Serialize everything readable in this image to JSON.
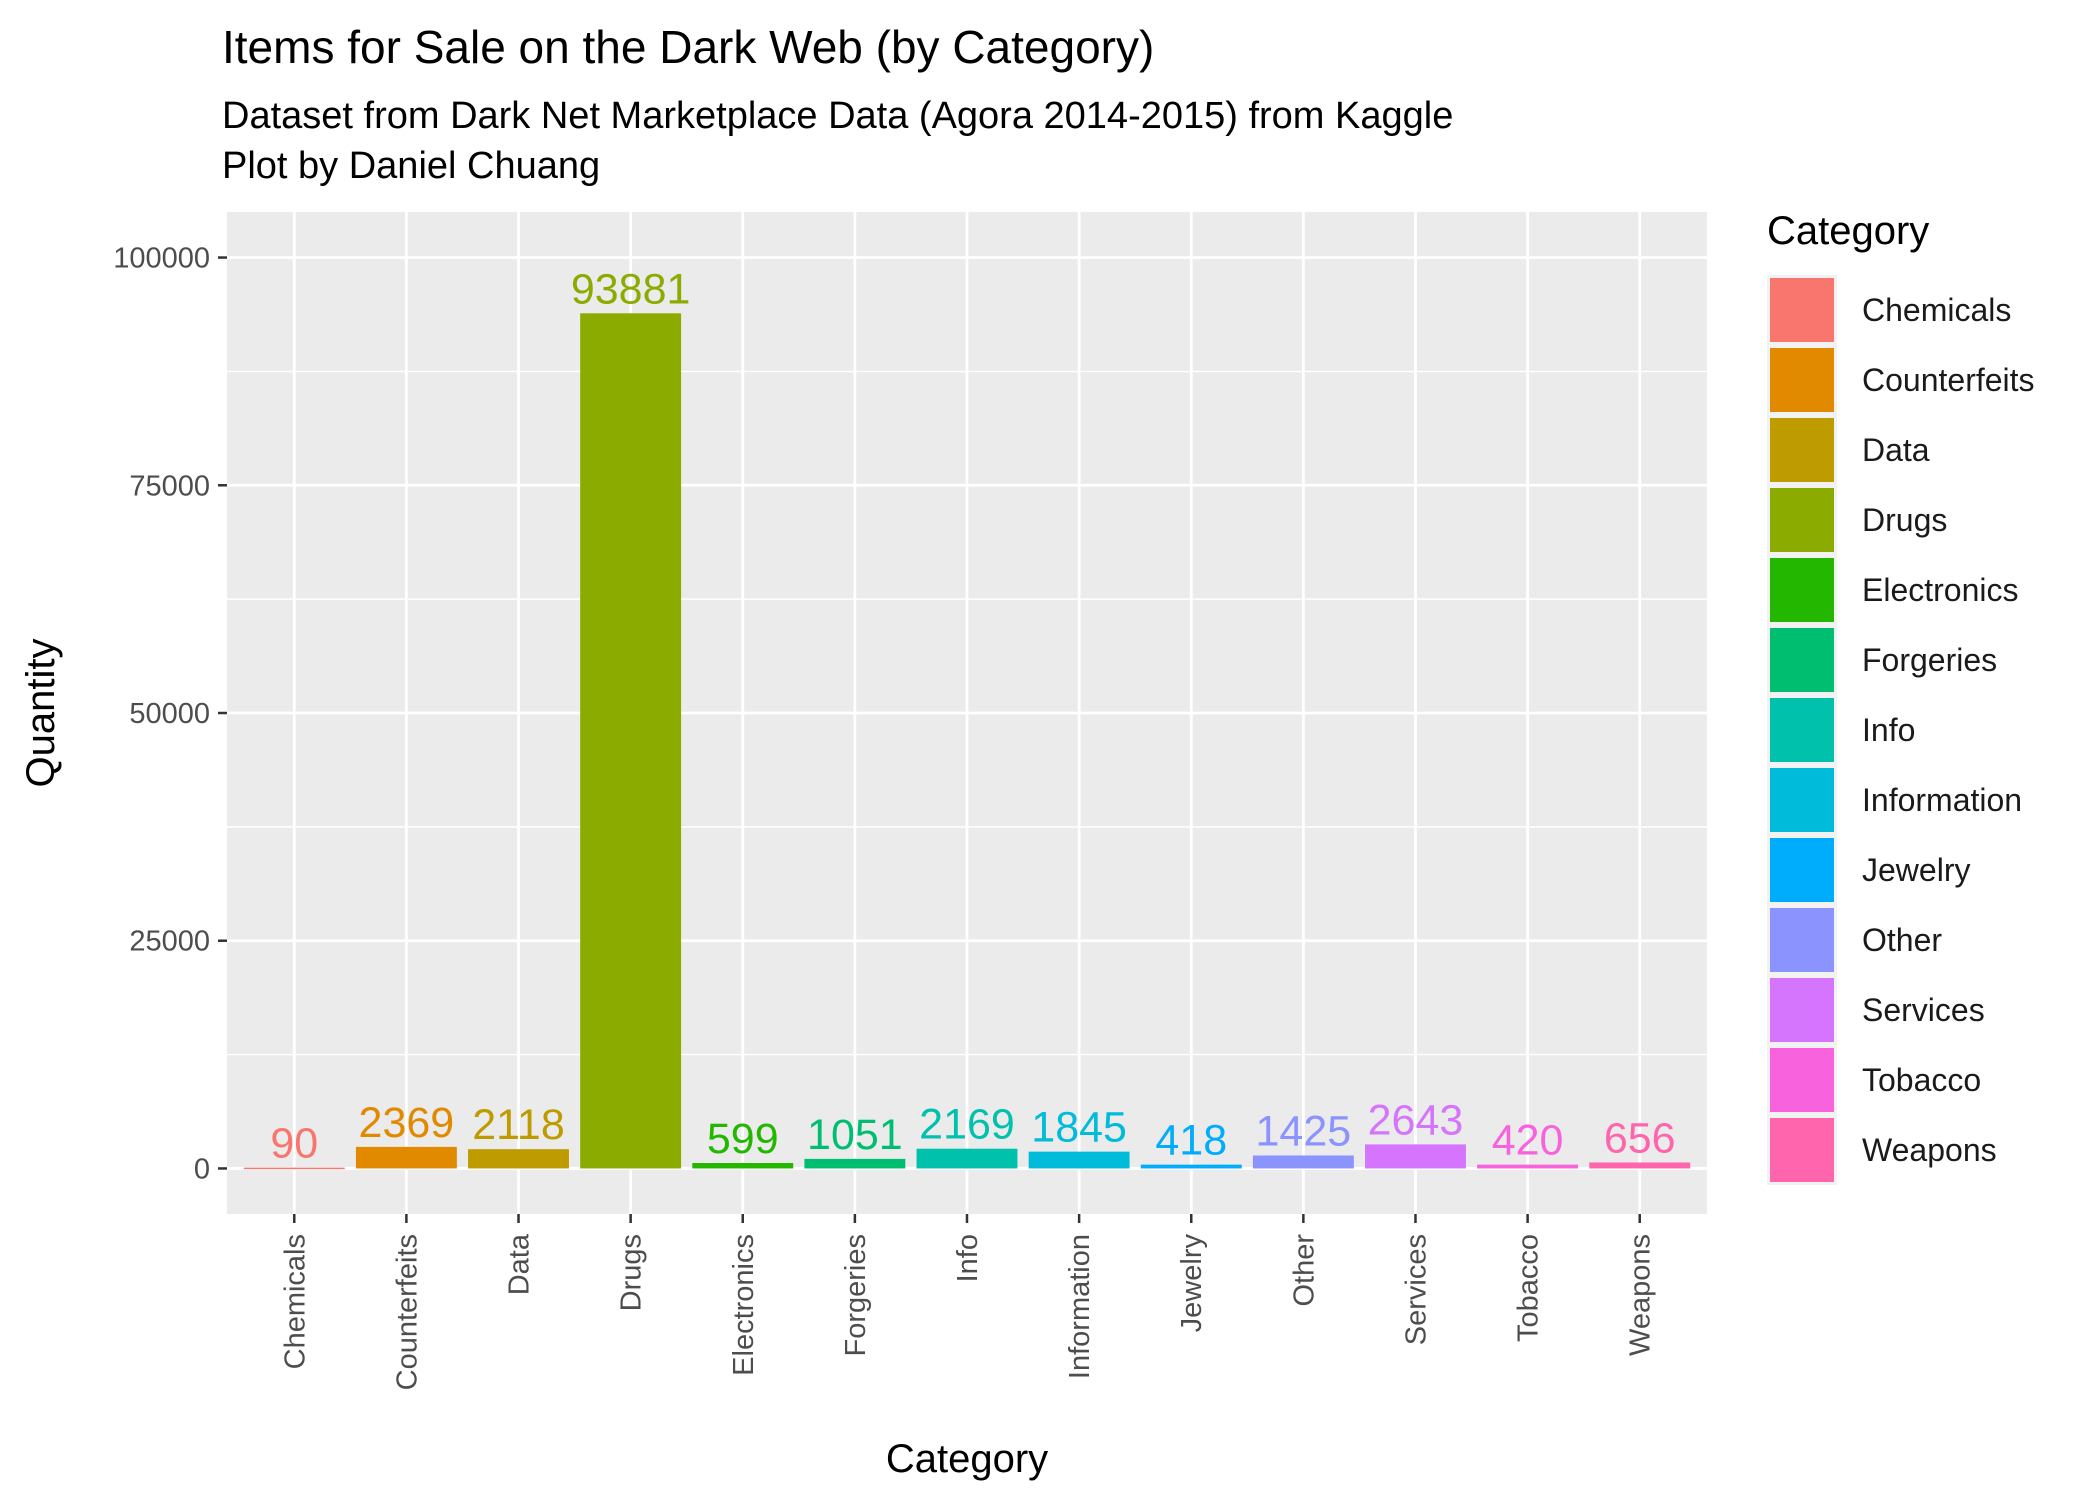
{
  "chart_data": {
    "type": "bar",
    "title": "Items for Sale on the Dark Web (by Category)",
    "subtitle": [
      "Dataset from Dark Net Marketplace Data (Agora 2014-2015) from Kaggle",
      "Plot by Daniel Chuang"
    ],
    "xlabel": "Category",
    "ylabel": "Quantity",
    "ylim": [
      -5000,
      105000
    ],
    "yticks": [
      0,
      25000,
      50000,
      75000,
      100000
    ],
    "categories": [
      "Chemicals",
      "Counterfeits",
      "Data",
      "Drugs",
      "Electronics",
      "Forgeries",
      "Info",
      "Information",
      "Jewelry",
      "Other",
      "Services",
      "Tobacco",
      "Weapons"
    ],
    "values": [
      90,
      2369,
      2118,
      93881,
      599,
      1051,
      2169,
      1845,
      418,
      1425,
      2643,
      420,
      656
    ],
    "colors": [
      "#F8766D",
      "#E18A00",
      "#BE9C00",
      "#8CAB00",
      "#24B700",
      "#00BE70",
      "#00C1AB",
      "#00BBDA",
      "#00ACFC",
      "#8B93FF",
      "#D575FE",
      "#F962DD",
      "#FF65AC"
    ],
    "legend": {
      "title": "Category",
      "placement": "right"
    },
    "grid": true,
    "panel_background": "#EBEBEB",
    "grid_color": "#FFFFFF"
  }
}
